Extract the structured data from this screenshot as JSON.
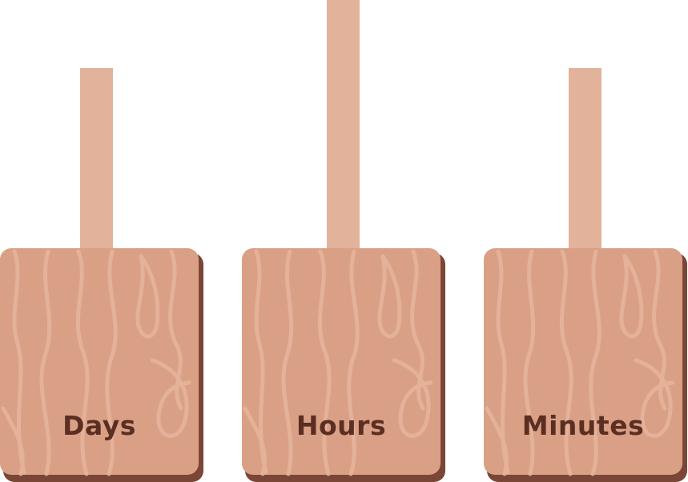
{
  "counters": [
    {
      "key": "days",
      "label": "Days"
    },
    {
      "key": "hours",
      "label": "Hours"
    },
    {
      "key": "minutes",
      "label": "Minutes"
    }
  ],
  "colors": {
    "board": "#daa086",
    "board_shadow": "#7a4636",
    "grain": "#e6b49d",
    "pole": "#e3b29a",
    "label": "#5a2f22"
  }
}
